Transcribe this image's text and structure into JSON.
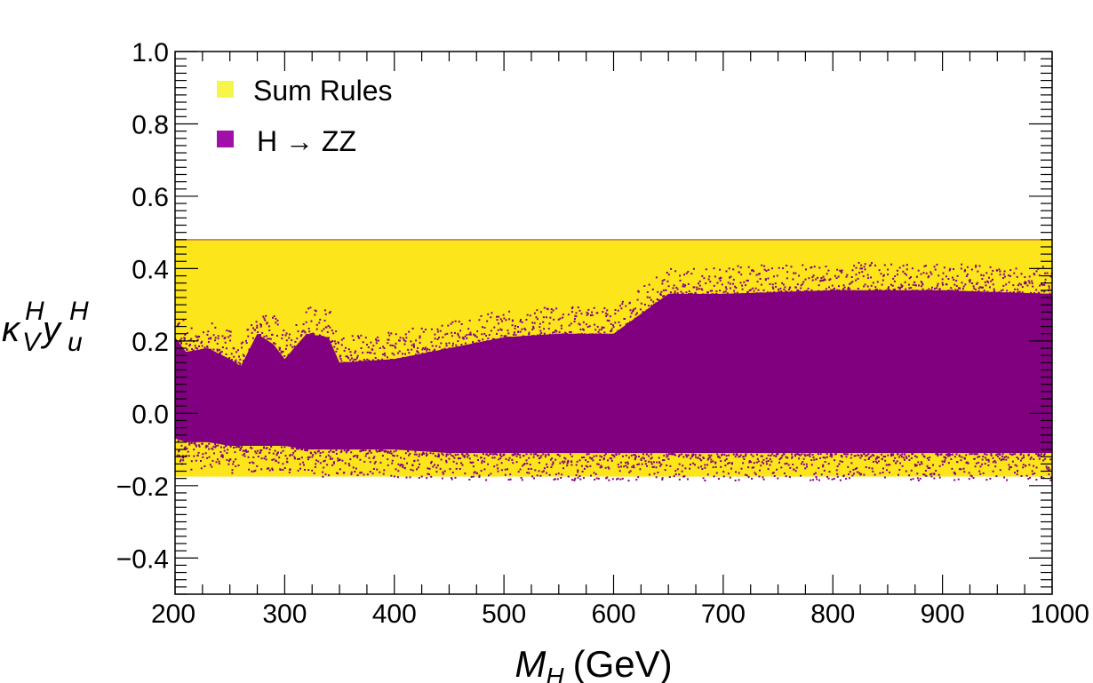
{
  "chart_data": {
    "type": "scatter",
    "title": "",
    "xlabel": {
      "main": "M",
      "sub": "H",
      "unit": "(GeV)"
    },
    "ylabel": {
      "k": "κ",
      "k_sup": "H",
      "k_sub": "V",
      "y": "y",
      "y_sup": "H",
      "y_sub": "u"
    },
    "xlim": [
      200,
      1000
    ],
    "ylim": [
      -0.5,
      1.0
    ],
    "x_ticks": [
      200,
      300,
      400,
      500,
      600,
      700,
      800,
      900,
      1000
    ],
    "x_tick_labels": [
      "200",
      "300",
      "400",
      "500",
      "600",
      "700",
      "800",
      "900",
      "1000"
    ],
    "y_ticks": [
      -0.4,
      -0.2,
      0.0,
      0.2,
      0.4,
      0.6,
      0.8,
      1.0
    ],
    "y_tick_labels": [
      "−0.4",
      "−0.2",
      "0.0",
      "0.2",
      "0.4",
      "0.6",
      "0.8",
      "1.0"
    ],
    "legend_position": "top-left",
    "legend": [
      {
        "label": "Sum Rules",
        "color": "#f5f54a"
      },
      {
        "label": "H → ZZ",
        "color": "#a010a8"
      }
    ],
    "series": [
      {
        "name": "Sum Rules",
        "kind": "band",
        "color": "#fde51b",
        "edge_color": "#c8782a",
        "x_range": [
          200,
          1000
        ],
        "y_min": -0.175,
        "y_max": 0.48
      },
      {
        "name": "H → ZZ",
        "kind": "scatter-envelope",
        "color": "#800080",
        "x": [
          200,
          210,
          230,
          250,
          260,
          275,
          290,
          300,
          320,
          340,
          350,
          400,
          450,
          500,
          550,
          600,
          650,
          700,
          800,
          900,
          1000
        ],
        "upper": [
          0.21,
          0.17,
          0.18,
          0.15,
          0.13,
          0.22,
          0.19,
          0.15,
          0.22,
          0.21,
          0.14,
          0.15,
          0.18,
          0.21,
          0.22,
          0.22,
          0.33,
          0.33,
          0.34,
          0.34,
          0.33
        ],
        "lower": [
          -0.07,
          -0.08,
          -0.08,
          -0.09,
          -0.09,
          -0.09,
          -0.09,
          -0.09,
          -0.1,
          -0.1,
          -0.1,
          -0.1,
          -0.11,
          -0.11,
          -0.11,
          -0.11,
          -0.11,
          -0.11,
          -0.11,
          -0.11,
          -0.11
        ]
      }
    ]
  }
}
